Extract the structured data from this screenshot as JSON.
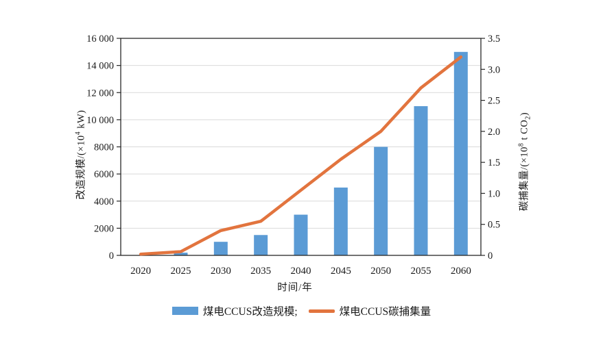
{
  "chart_data": {
    "type": "combo",
    "title": "",
    "categories": [
      "2020",
      "2025",
      "2030",
      "2035",
      "2040",
      "2045",
      "2050",
      "2055",
      "2060"
    ],
    "series": [
      {
        "name": "煤电CCUS改造规模",
        "type": "bar",
        "axis": "left",
        "color": "#5B9BD5",
        "values": [
          0,
          200,
          1000,
          1500,
          3000,
          5000,
          8000,
          11000,
          15000
        ]
      },
      {
        "name": "煤电CCUS碳捕集量",
        "type": "line",
        "axis": "right",
        "color": "#E2743E",
        "values": [
          0.02,
          0.06,
          0.4,
          0.55,
          1.05,
          1.55,
          2.0,
          2.7,
          3.2
        ]
      }
    ],
    "x_axis": {
      "label": "时间/年"
    },
    "left_axis": {
      "label_pre": "改造规模/(×10",
      "label_sup": "4",
      "label_post": " kW)",
      "min": 0,
      "max": 16000,
      "tick_values": [
        0,
        2000,
        4000,
        6000,
        8000,
        10000,
        12000,
        14000,
        16000
      ],
      "tick_labels": [
        "0",
        "2000",
        "4000",
        "6000",
        "8000",
        "10 000",
        "12 000",
        "14 000",
        "16 000"
      ]
    },
    "right_axis": {
      "label_pre": "碳捕集量/(×10",
      "label_sup": "8",
      "label_mid": " t CO",
      "label_sub": "2",
      "label_post": ")",
      "min": 0,
      "max": 3.5,
      "tick_values": [
        0,
        0.5,
        1,
        1.5,
        2,
        2.5,
        3,
        3.5
      ],
      "tick_labels": [
        "0",
        "0.5",
        "1.0",
        "1.5",
        "2.0",
        "2.5",
        "3.0",
        "3.5"
      ]
    },
    "grid": "horizontal",
    "legend_position": "bottom",
    "legend": [
      {
        "label": "煤电CCUS改造规模;",
        "swatch": "bar"
      },
      {
        "label": "煤电CCUS碳捕集量",
        "swatch": "line"
      }
    ],
    "colors": {
      "grid": "#d9d9d9",
      "axis": "#262626",
      "text": "#1a1a1a"
    }
  }
}
